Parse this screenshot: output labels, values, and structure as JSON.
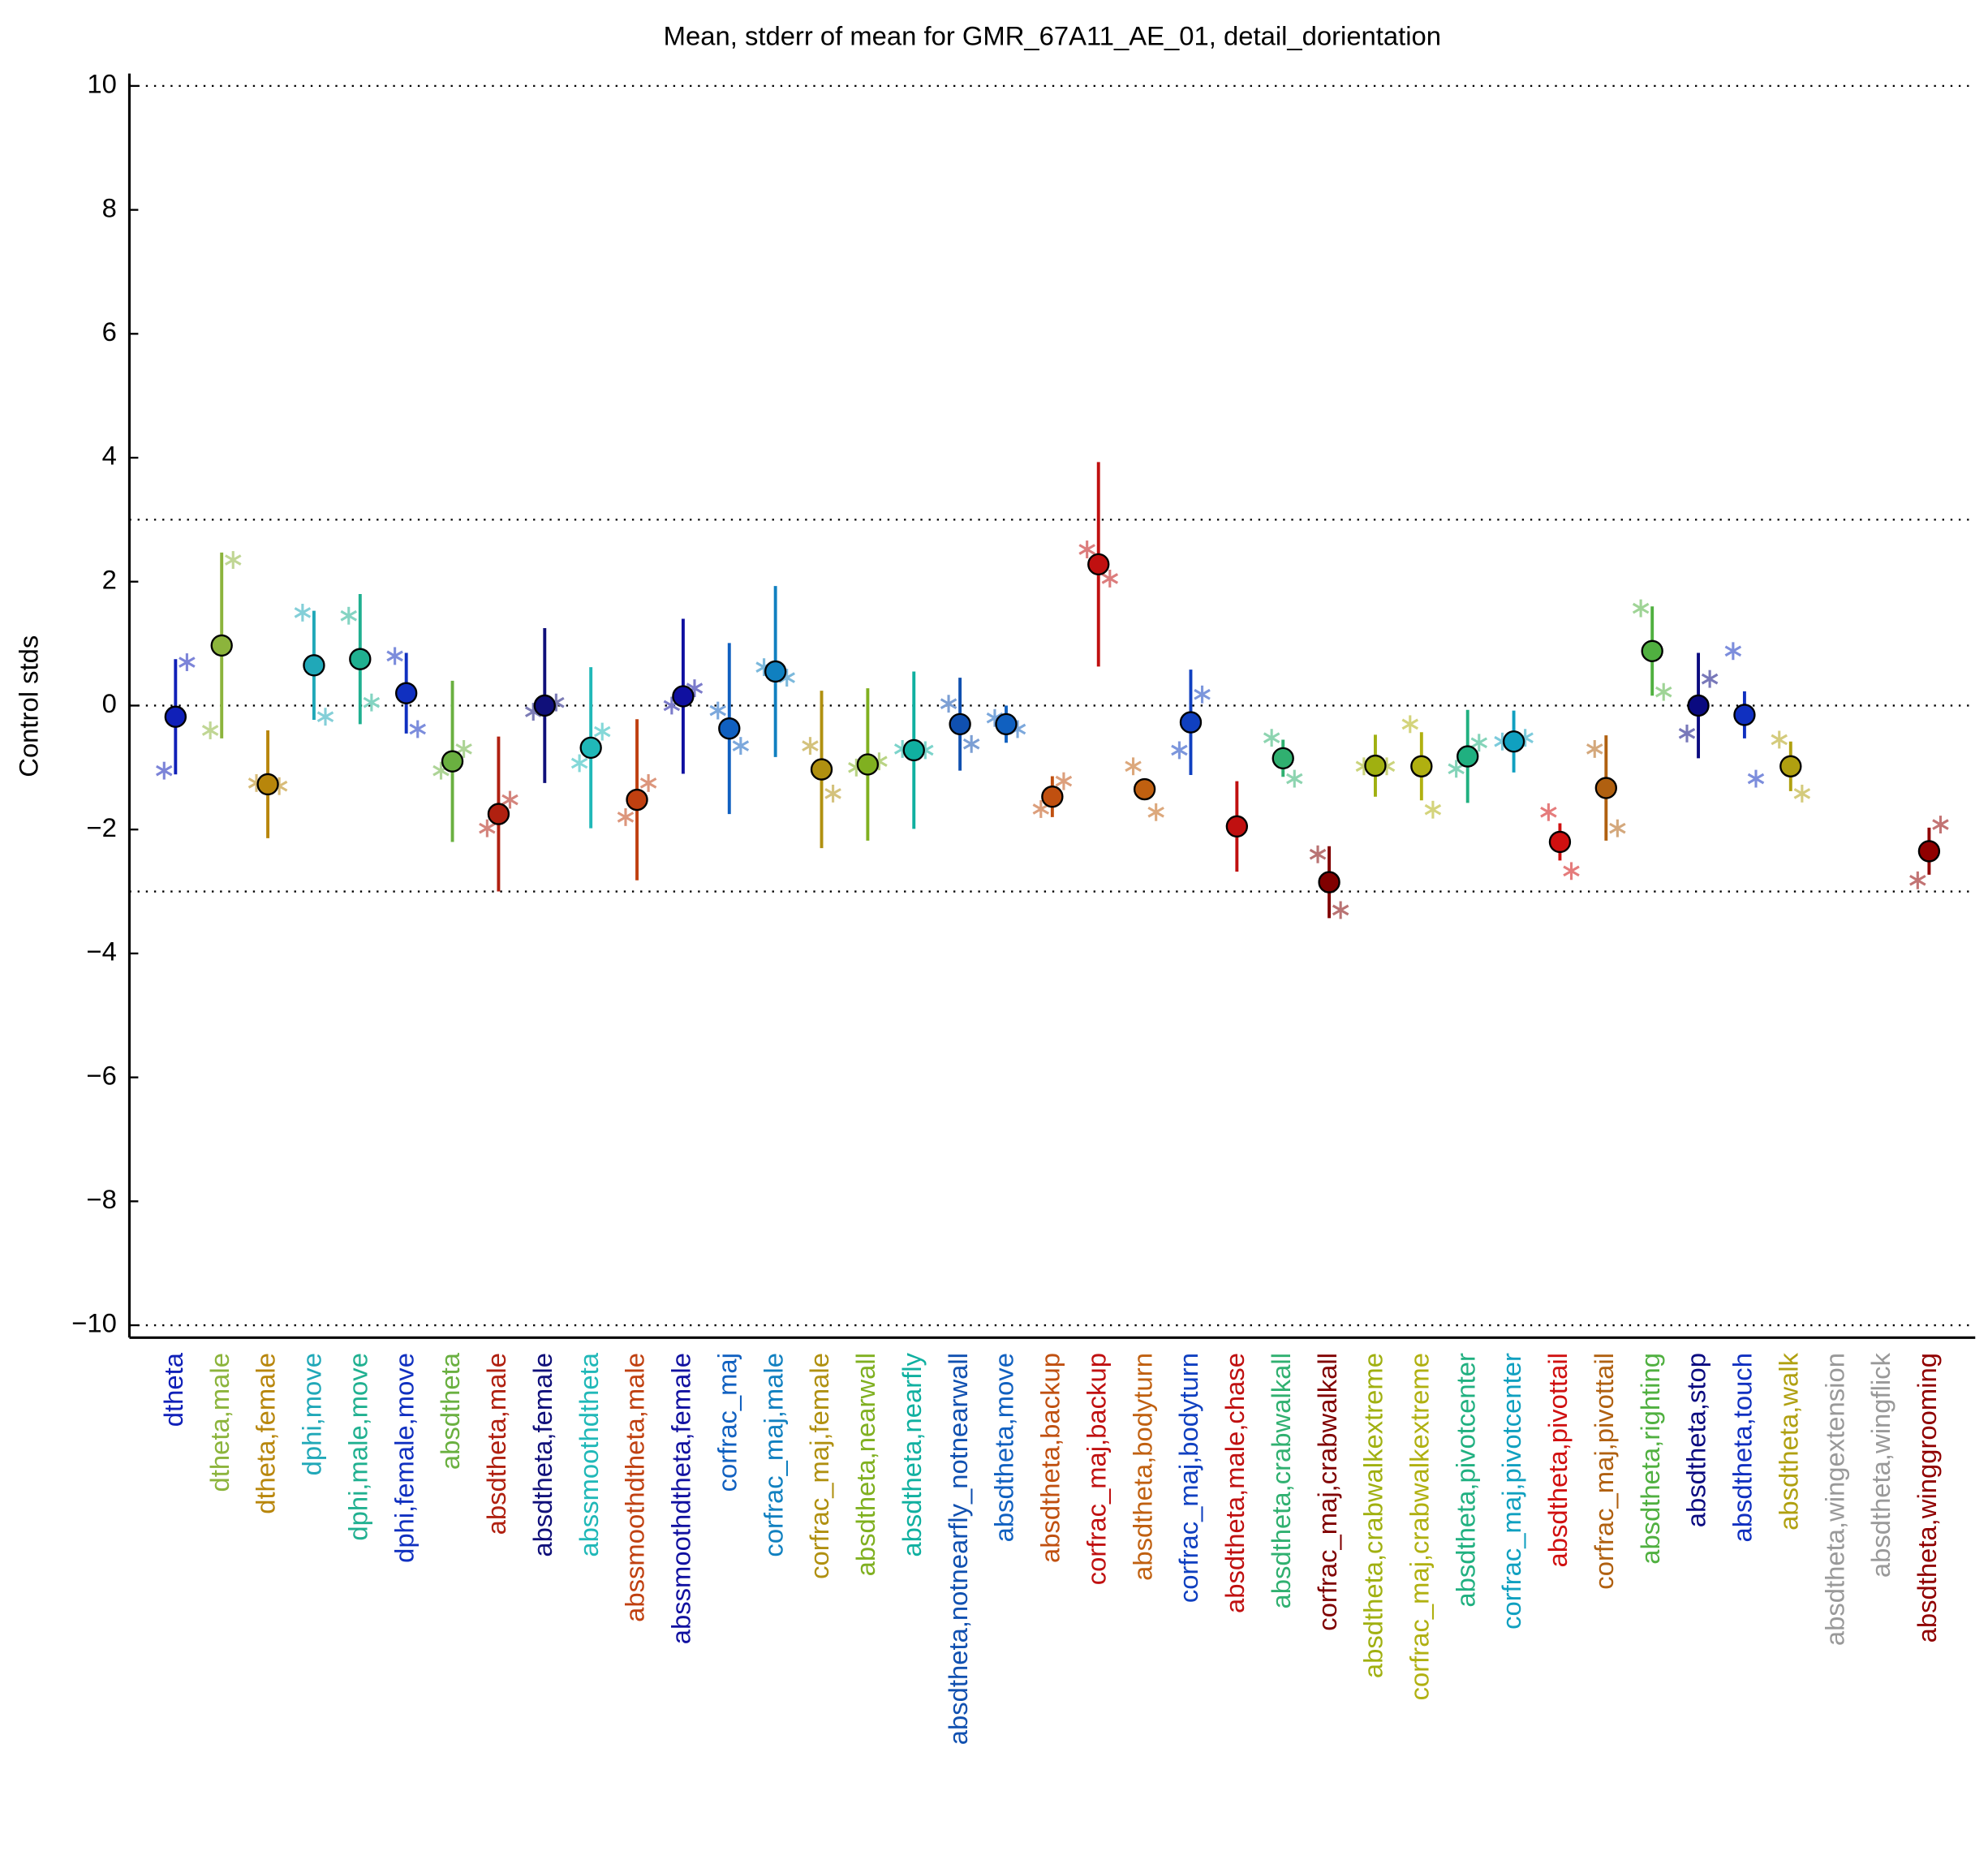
{
  "chart_data": {
    "type": "errorbar",
    "title": "Mean, stderr of mean for GMR_67A11_AE_01, detail_dorientation",
    "ylabel": "Control stds",
    "ylim": [
      -10.2,
      10.2
    ],
    "yticks": [
      -10,
      -8,
      -6,
      -4,
      -2,
      0,
      2,
      4,
      6,
      8,
      10
    ],
    "reference_lines": [
      -10,
      -3,
      0,
      3,
      10
    ],
    "categories": [
      "dtheta",
      "dtheta,male",
      "dtheta,female",
      "dphi,move",
      "dphi,male,move",
      "dphi,female,move",
      "absdtheta",
      "absdtheta,male",
      "absdtheta,female",
      "abssmoothdtheta",
      "abssmoothdtheta,male",
      "abssmoothdtheta,female",
      "corfrac_maj",
      "corfrac_maj,male",
      "corfrac_maj,female",
      "absdtheta,nearwall",
      "absdtheta,nearfly",
      "absdtheta,notnearfly_notnearwall",
      "absdtheta,move",
      "absdtheta,backup",
      "corfrac_maj,backup",
      "absdtheta,bodyturn",
      "corfrac_maj,bodyturn",
      "absdtheta,male,chase",
      "absdtheta,crabwalkall",
      "corfrac_maj,crabwalkall",
      "absdtheta,crabwalkextreme",
      "corfrac_maj,crabwalkextreme",
      "absdtheta,pivotcenter",
      "corfrac_maj,pivotcenter",
      "absdtheta,pivottail",
      "corfrac_maj,pivottail",
      "absdtheta,righting",
      "absdtheta,stop",
      "absdtheta,touch",
      "absdtheta,walk",
      "absdtheta,wingextension",
      "absdtheta,wingflick",
      "absdtheta,winggrooming"
    ],
    "colors": [
      "#1020b8",
      "#8cb43c",
      "#b8860b",
      "#20a8b8",
      "#20b090",
      "#1030c0",
      "#6ab040",
      "#b02010",
      "#10107a",
      "#20b8b8",
      "#c04010",
      "#1010a0",
      "#1060c0",
      "#1080c0",
      "#b09010",
      "#80b020",
      "#10b0a0",
      "#1050b0",
      "#1060c0",
      "#c05010",
      "#c01010",
      "#c06010",
      "#1040c0",
      "#c01010",
      "#30b070",
      "#800000",
      "#a0b010",
      "#b0b010",
      "#20b080",
      "#10a0c0",
      "#d01010",
      "#b06010",
      "#50b040",
      "#0a0a80",
      "#1030c0",
      "#b0a010",
      "#999999",
      "#999999",
      "#900000"
    ],
    "values": [
      -0.18,
      0.97,
      -1.27,
      0.65,
      0.75,
      0.2,
      -0.9,
      -1.75,
      0.0,
      -0.68,
      -1.52,
      0.15,
      -0.37,
      0.55,
      -1.03,
      -0.95,
      -0.72,
      -0.3,
      -0.3,
      -1.47,
      2.28,
      -1.35,
      -0.27,
      -1.95,
      -0.85,
      -2.85,
      -0.97,
      -0.98,
      -0.82,
      -0.58,
      -2.2,
      -1.33,
      0.88,
      0.0,
      -0.15,
      -0.98,
      null,
      null,
      -2.35
    ],
    "errors": [
      0.93,
      1.5,
      0.87,
      0.88,
      1.05,
      0.65,
      1.3,
      1.25,
      1.25,
      1.3,
      1.3,
      1.25,
      1.38,
      1.38,
      1.27,
      1.23,
      1.27,
      0.75,
      0.3,
      0.33,
      1.65,
      0.05,
      0.85,
      0.73,
      0.3,
      0.58,
      0.5,
      0.55,
      0.75,
      0.5,
      0.3,
      0.85,
      0.72,
      0.85,
      0.38,
      0.4,
      null,
      null,
      0.38
    ],
    "left_values": [
      -1.05,
      -0.4,
      -1.25,
      1.5,
      1.45,
      0.8,
      -1.05,
      -1.98,
      -0.1,
      -0.93,
      -1.8,
      0.0,
      -0.08,
      0.62,
      -0.65,
      -1.0,
      -0.7,
      0.03,
      -0.2,
      -1.67,
      2.52,
      -0.98,
      -0.72,
      null,
      -0.52,
      -2.4,
      -0.98,
      -0.3,
      -1.02,
      -0.58,
      -1.72,
      -0.7,
      1.57,
      -0.45,
      0.88,
      -0.55,
      null,
      null,
      -2.82
    ],
    "right_values": [
      0.7,
      2.35,
      -1.3,
      -0.18,
      0.05,
      -0.38,
      -0.7,
      -1.52,
      0.05,
      -0.42,
      -1.25,
      0.28,
      -0.65,
      0.45,
      -1.42,
      -0.9,
      -0.72,
      -0.62,
      -0.38,
      -1.22,
      2.05,
      -1.72,
      0.18,
      null,
      -1.18,
      -3.3,
      -0.98,
      -1.68,
      -0.6,
      -0.52,
      -2.67,
      -1.98,
      0.22,
      0.43,
      -1.18,
      -1.42,
      null,
      null,
      -1.92
    ]
  }
}
